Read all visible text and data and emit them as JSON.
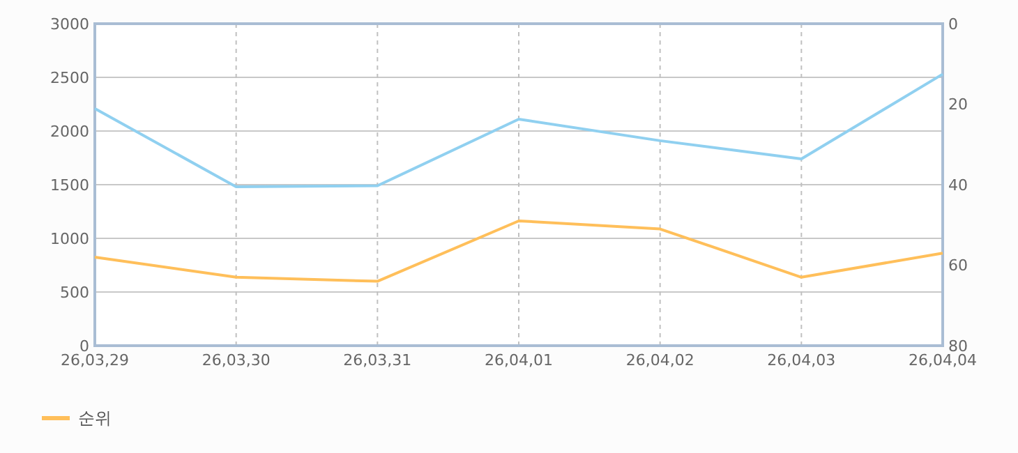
{
  "chart_data": {
    "type": "line",
    "categories": [
      "26,03,29",
      "26,03,30",
      "26,03,31",
      "26,04,01",
      "26,04,02",
      "26,04,03",
      "26,04,04"
    ],
    "series": [
      {
        "color": "#90d0f0",
        "values": [
          2210,
          1480,
          1490,
          2110,
          1910,
          1740,
          2530
        ]
      },
      {
        "name": "순위",
        "color": "#ffbf5a",
        "axis": "y2",
        "values": [
          58,
          63,
          64,
          49,
          51,
          63,
          57
        ]
      }
    ],
    "ylim": [
      0,
      3000
    ],
    "yticks": [
      0,
      500,
      1000,
      1500,
      2000,
      2500,
      3000
    ],
    "y2lim": [
      80,
      0
    ],
    "y2ticks": [
      0,
      20,
      40,
      60,
      80
    ],
    "grid": true,
    "legend": "bottom",
    "marker": "none",
    "line_style": "solid"
  }
}
